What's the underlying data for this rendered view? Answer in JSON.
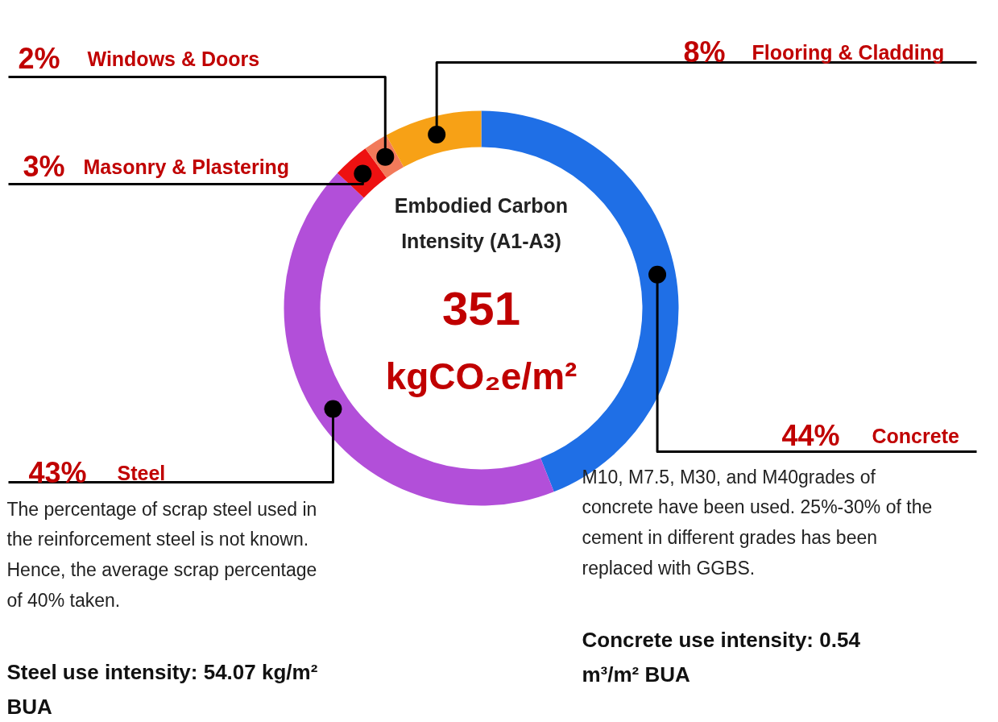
{
  "chart_data": {
    "type": "donut",
    "title": "Embodied Carbon Intensity (A1-A3)",
    "categories": [
      "Concrete",
      "Steel",
      "Masonry & Plastering",
      "Windows & Doors",
      "Flooring & Cladding"
    ],
    "values": [
      44,
      43,
      3,
      2,
      8
    ],
    "colors": [
      "#1f6fe6",
      "#b24fd9",
      "#ee1111",
      "#f27a5a",
      "#f7a116"
    ],
    "value_labels": [
      "44%",
      "43%",
      "3%",
      "2%",
      "8%"
    ],
    "annotations": [
      "351",
      "kgCO₂e/m²",
      "The percentage of scrap steel used in the reinforcement steel is not known. Hence, the average scrap percentage of 40% taken.",
      "Steel use intensity: 54.07 kg/m² BUA",
      "M10, M7.5, M30, and M40grades of concrete have been used. 25%-30% of the cement in different grades has been replaced with GGBS.",
      "Concrete use intensity: 0.54 m³/m² BUA"
    ]
  }
}
